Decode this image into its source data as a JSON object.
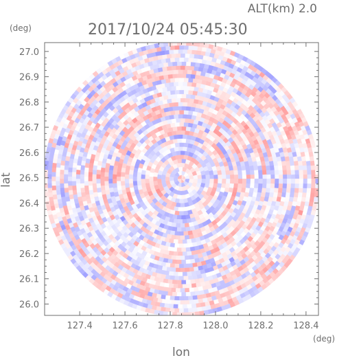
{
  "chart_data": {
    "type": "heatmap",
    "title": "2017/10/24 05:45:30",
    "subtitle": "ALT(km) 2.0",
    "xlabel": "lon",
    "ylabel": "lat",
    "x_unit": "(deg)",
    "y_unit": "(deg)",
    "xlim": [
      127.245,
      128.455
    ],
    "ylim": [
      25.955,
      27.035
    ],
    "x_ticks": [
      127.4,
      127.6,
      127.8,
      128.0,
      128.2,
      128.4
    ],
    "x_tick_labels": [
      "127.4",
      "127.6",
      "127.8",
      "128.0",
      "128.2",
      "128.4"
    ],
    "y_ticks": [
      26.0,
      26.1,
      26.2,
      26.3,
      26.4,
      26.5,
      26.6,
      26.7,
      26.8,
      26.9,
      27.0
    ],
    "y_tick_labels": [
      "26.0",
      "26.1",
      "26.2",
      "26.3",
      "26.4",
      "26.5",
      "26.6",
      "26.7",
      "26.8",
      "26.9",
      "27.0"
    ],
    "center": {
      "lon": 127.85,
      "lat": 26.495
    },
    "range_deg": {
      "lon": 0.61,
      "lat": 0.545
    },
    "colors": {
      "positive": "#ff8c8c",
      "negative": "#8c8cff",
      "axis": "#6e6e6e"
    }
  }
}
